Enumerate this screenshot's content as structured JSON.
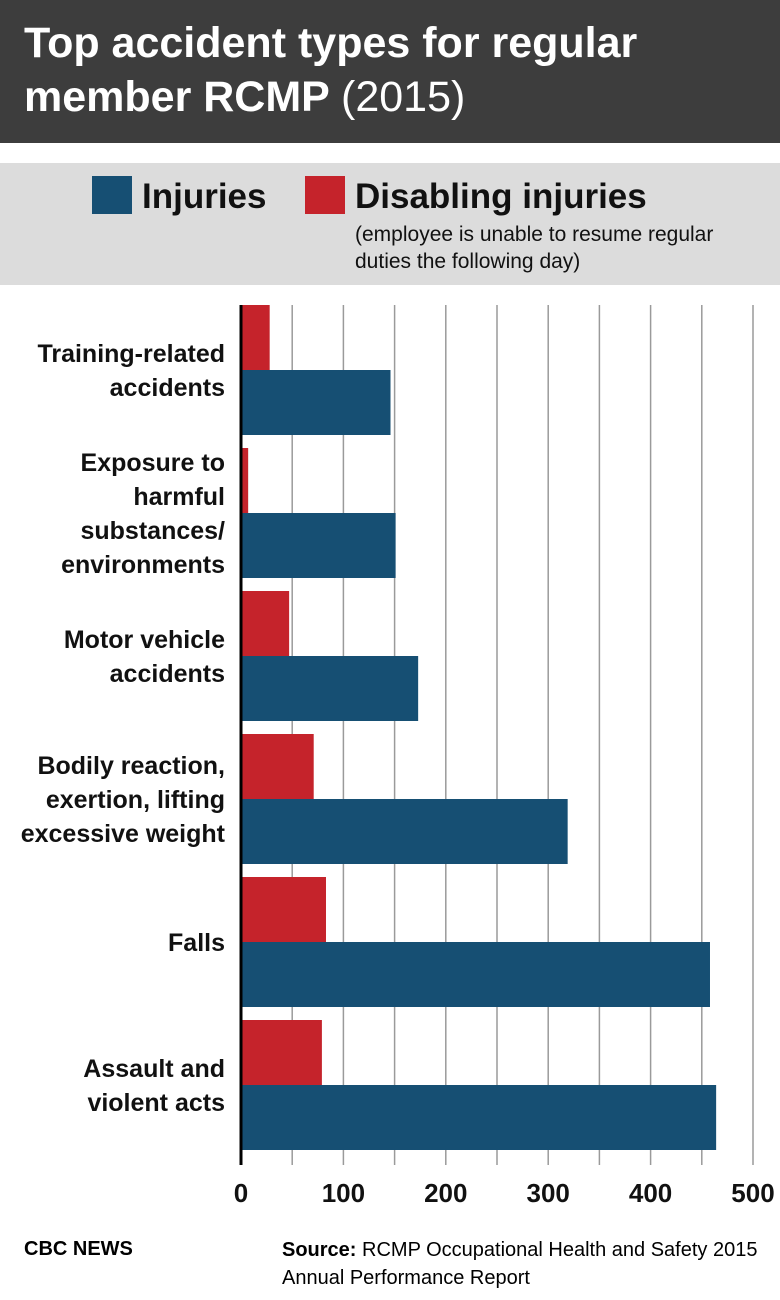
{
  "chart_data": {
    "type": "bar",
    "orientation": "horizontal",
    "title": "Top accident types for regular member RCMP",
    "title_year": "(2015)",
    "legend_note": "(employee is unable to resume regular duties the following day)",
    "categories": [
      "Training-related\naccidents",
      "Exposure to\nharmful\nsubstances/\nenvironments",
      "Motor vehicle\naccidents",
      "Bodily reaction,\nexertion, lifting\nexcessive weight",
      "Falls",
      "Assault and\nviolent acts"
    ],
    "series": [
      {
        "name": "Disabling injuries",
        "color": "#c5232b",
        "values": [
          28,
          7,
          47,
          71,
          83,
          79
        ]
      },
      {
        "name": "Injuries",
        "color": "#164f73",
        "values": [
          146,
          151,
          173,
          319,
          458,
          464
        ]
      }
    ],
    "legend_order": [
      1,
      0
    ],
    "xlim": [
      0,
      500
    ],
    "xticks": [
      0,
      100,
      200,
      300,
      400,
      500
    ],
    "xgrid": [
      50,
      100,
      150,
      200,
      250,
      300,
      350,
      400,
      450,
      500
    ],
    "footer_brand": "CBC NEWS",
    "source_label": "Source:",
    "source": "RCMP Occupational Health and Safety 2015 Annual Performance Report"
  }
}
